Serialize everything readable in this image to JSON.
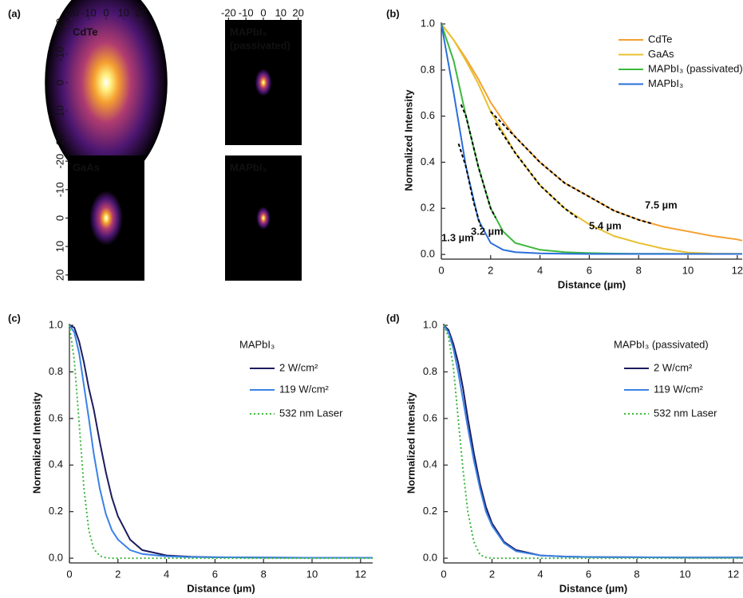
{
  "chart_data": [
    {
      "type": "image-grid",
      "panel_label": "(a)",
      "xlim": [
        -22,
        22
      ],
      "ylim": [
        -22,
        22
      ],
      "y_inverted": true,
      "xticks": [
        -20,
        -10,
        0,
        10,
        20
      ],
      "yticks": [
        -20,
        -10,
        0,
        10,
        20
      ],
      "images": [
        {
          "label": [
            "CdTe"
          ],
          "color": "#f5a030",
          "spread": 22
        },
        {
          "label": [
            "MAPbI₃",
            "(passivated)"
          ],
          "color": "#3cb83c",
          "spread": 3
        },
        {
          "label": [
            "GaAs"
          ],
          "color": "#e8c030",
          "spread": 6
        },
        {
          "label": [
            "MAPbI₃"
          ],
          "color": "#2a8fe0",
          "spread": 2.5
        }
      ]
    },
    {
      "type": "line",
      "panel_label": "(b)",
      "xlabel": "Distance (µm)",
      "ylabel": "Normalized Intensity",
      "xlim": [
        0,
        12.2
      ],
      "ylim": [
        -0.01,
        1.0
      ],
      "xticks": [
        0,
        2,
        4,
        6,
        8,
        10,
        12
      ],
      "yticks": [
        {
          "value": 0,
          "label": "0.0"
        },
        0.2,
        0.4,
        0.6,
        0.8,
        {
          "value": 1,
          "label": "1.0"
        }
      ],
      "x": [
        0,
        0.5,
        1,
        1.5,
        2,
        2.5,
        3,
        4,
        5,
        6,
        7,
        8,
        9,
        10,
        11,
        12,
        12.2
      ],
      "series": [
        {
          "name": "CdTe",
          "color": "#f5a030",
          "values": [
            1,
            0.93,
            0.85,
            0.76,
            0.66,
            0.58,
            0.51,
            0.4,
            0.31,
            0.25,
            0.19,
            0.15,
            0.12,
            0.1,
            0.08,
            0.065,
            0.06
          ]
        },
        {
          "name": "GaAs",
          "color": "#e8c030",
          "values": [
            1,
            0.93,
            0.84,
            0.74,
            0.62,
            0.53,
            0.44,
            0.3,
            0.2,
            0.13,
            0.08,
            0.05,
            0.025,
            0.008,
            0.004,
            0.003,
            0.003
          ]
        },
        {
          "name": "MAPbI₃ (passivated)",
          "color": "#3cb83c",
          "values": [
            1,
            0.84,
            0.6,
            0.38,
            0.2,
            0.1,
            0.05,
            0.02,
            0.01,
            0.006,
            0.004,
            0.003,
            0.003,
            0.002,
            0.002,
            0.002,
            0.002
          ]
        },
        {
          "name": "MAPbI₃",
          "color": "#2a6fdb",
          "values": [
            1,
            0.7,
            0.38,
            0.15,
            0.05,
            0.02,
            0.01,
            0.005,
            0.003,
            0.002,
            0.002,
            0.002,
            0.002,
            0.002,
            0.002,
            0.002,
            0.002
          ]
        }
      ],
      "fit_color": "#000000",
      "fits": [
        {
          "x": [
            2,
            3,
            4,
            5,
            6,
            7,
            8,
            8.5
          ],
          "values": [
            0.62,
            0.51,
            0.4,
            0.31,
            0.25,
            0.19,
            0.15,
            0.135
          ]
        },
        {
          "x": [
            2.2,
            3,
            4,
            5,
            5.5
          ],
          "values": [
            0.57,
            0.44,
            0.3,
            0.2,
            0.16
          ]
        },
        {
          "x": [
            0.8,
            1,
            1.5,
            2,
            2.2
          ],
          "values": [
            0.65,
            0.6,
            0.38,
            0.2,
            0.16
          ]
        },
        {
          "x": [
            0.7,
            1,
            1.3,
            1.6
          ],
          "values": [
            0.48,
            0.38,
            0.23,
            0.12
          ]
        }
      ],
      "annotations": [
        {
          "text": "7.5 µm",
          "color": "#f5a030"
        },
        {
          "text": "5.4 µm",
          "color": "#e8c030"
        },
        {
          "text": "3.2 µm",
          "color": "#3cb83c"
        },
        {
          "text": "1.3 µm",
          "color": "#2a6fdb"
        }
      ]
    },
    {
      "type": "line",
      "panel_label": "(c)",
      "xlabel": "Distance (µm)",
      "ylabel": "Normalized Intensity",
      "legend_title": "MAPbI₃",
      "xlim": [
        0,
        12.5
      ],
      "ylim": [
        -0.01,
        1.0
      ],
      "xticks": [
        0,
        2,
        4,
        6,
        8,
        10,
        12
      ],
      "yticks": [
        {
          "value": 0,
          "label": "0.0"
        },
        0.2,
        0.4,
        0.6,
        0.8,
        {
          "value": 1,
          "label": "1.0"
        }
      ],
      "x": [
        0,
        0.2,
        0.4,
        0.6,
        0.8,
        1,
        1.25,
        1.5,
        1.75,
        2,
        2.5,
        3,
        4,
        5,
        6,
        8,
        10,
        12.5
      ],
      "series": [
        {
          "name": "2 W/cm²",
          "color": "#1c1c60",
          "values": [
            1,
            0.99,
            0.93,
            0.84,
            0.73,
            0.64,
            0.5,
            0.37,
            0.26,
            0.18,
            0.08,
            0.035,
            0.012,
            0.006,
            0.004,
            0.003,
            0.002,
            0.002
          ]
        },
        {
          "name": "119 W/cm²",
          "color": "#3b82e6",
          "values": [
            1,
            0.97,
            0.88,
            0.74,
            0.6,
            0.45,
            0.3,
            0.19,
            0.12,
            0.08,
            0.035,
            0.018,
            0.008,
            0.005,
            0.004,
            0.003,
            0.002,
            0.002
          ]
        },
        {
          "name": "532 nm Laser",
          "color": "#3cb83c",
          "style": "dotted",
          "values": [
            1,
            0.85,
            0.58,
            0.3,
            0.12,
            0.04,
            0.01,
            0.002,
            0,
            0,
            0,
            0,
            0,
            0,
            0,
            0,
            0,
            0
          ]
        }
      ]
    },
    {
      "type": "line",
      "panel_label": "(d)",
      "xlabel": "Distance (µm)",
      "ylabel": "Normalized Intensity",
      "legend_title": "MAPbI₃ (passivated)",
      "xlim": [
        0,
        12.4
      ],
      "ylim": [
        -0.01,
        1.0
      ],
      "xticks": [
        0,
        2,
        4,
        6,
        8,
        10,
        12
      ],
      "yticks": [
        {
          "value": 0,
          "label": "0.0"
        },
        0.2,
        0.4,
        0.6,
        0.8,
        {
          "value": 1,
          "label": "1.0"
        }
      ],
      "x": [
        0,
        0.2,
        0.4,
        0.6,
        0.8,
        1,
        1.25,
        1.5,
        1.75,
        2,
        2.5,
        3,
        4,
        5,
        6,
        8,
        10,
        12.4
      ],
      "series": [
        {
          "name": "2 W/cm²",
          "color": "#1c1c60",
          "values": [
            1,
            0.98,
            0.92,
            0.84,
            0.73,
            0.6,
            0.45,
            0.32,
            0.22,
            0.15,
            0.07,
            0.035,
            0.012,
            0.007,
            0.005,
            0.004,
            0.003,
            0.003
          ]
        },
        {
          "name": "119 W/cm²",
          "color": "#3b82e6",
          "values": [
            1,
            0.97,
            0.9,
            0.8,
            0.68,
            0.56,
            0.42,
            0.3,
            0.2,
            0.14,
            0.065,
            0.03,
            0.012,
            0.007,
            0.005,
            0.004,
            0.003,
            0.003
          ]
        },
        {
          "name": "532 nm Laser",
          "color": "#3cb83c",
          "style": "dotted",
          "values": [
            1,
            0.95,
            0.82,
            0.6,
            0.38,
            0.2,
            0.07,
            0.015,
            0.003,
            0,
            0,
            0,
            0,
            0,
            0,
            0,
            0,
            0
          ]
        }
      ]
    }
  ]
}
